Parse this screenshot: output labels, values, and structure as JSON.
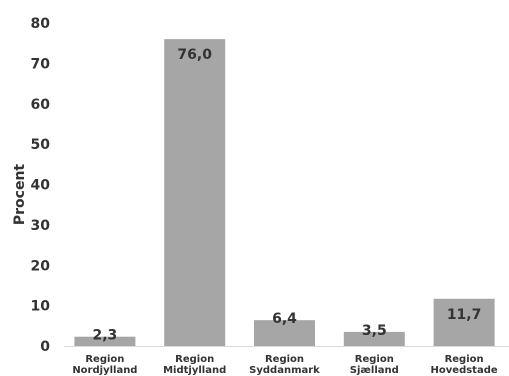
{
  "chart_data": {
    "type": "bar",
    "title": "",
    "xlabel": "",
    "ylabel": "Procent",
    "ylim": [
      0,
      80
    ],
    "yticks": [
      0,
      10,
      20,
      30,
      40,
      50,
      60,
      70,
      80
    ],
    "grid": false,
    "legend": "none",
    "categories": [
      [
        "Region",
        "Nordjylland"
      ],
      [
        "Region",
        "Midtjylland"
      ],
      [
        "Region",
        "Syddanmark"
      ],
      [
        "Region",
        "Sjælland"
      ],
      [
        "Region",
        "Hovedstade"
      ]
    ],
    "values": [
      2.3,
      76.0,
      6.4,
      3.5,
      11.7
    ],
    "data_labels": [
      "2,3",
      "76,0",
      "6,4",
      "3,5",
      "11,7"
    ],
    "bar_color": "#a6a6a6",
    "text_color": "#333333"
  }
}
